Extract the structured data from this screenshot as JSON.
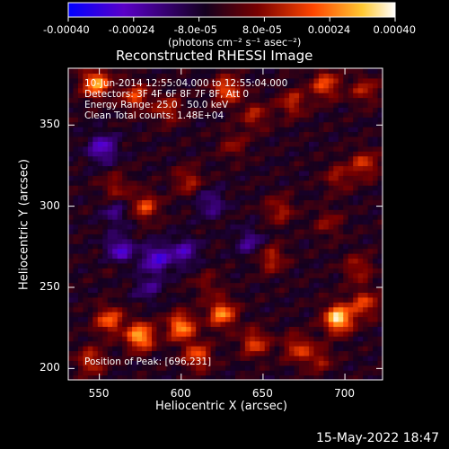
{
  "chart_data": {
    "type": "heatmap",
    "title": "Reconstructed RHESSI Image",
    "xlabel": "Heliocentric X (arcsec)",
    "ylabel": "Heliocentric Y (arcsec)",
    "xlim": [
      531,
      723
    ],
    "ylim": [
      193,
      385
    ],
    "x_ticks": [
      "550",
      "600",
      "650",
      "700"
    ],
    "x_tick_values": [
      550,
      600,
      650,
      700
    ],
    "y_ticks": [
      "200",
      "250",
      "300",
      "350"
    ],
    "y_tick_values": [
      200,
      250,
      300,
      350
    ],
    "colorbar": {
      "range": [
        -0.0004,
        0.0004
      ],
      "tick_labels": [
        "-0.00040",
        "-0.00024",
        "-8.0e-05",
        "8.0e-05",
        "0.00024",
        "0.00040"
      ],
      "tick_values": [
        -0.0004,
        -0.00024,
        -8e-05,
        8e-05,
        0.00024,
        0.0004
      ],
      "units_label": "(photons cm⁻² s⁻¹ asec⁻²)",
      "colormap": [
        "#0000ff",
        "#5a00c8",
        "#14001e",
        "#780000",
        "#ff4600",
        "#ffc832",
        "#ffffff"
      ]
    },
    "annotations": [
      "10-Jun-2014 12:55:04.000 to 12:55:04.000",
      "Detectors: 3F 4F 6F 8F 7F 8F, Att 0",
      "Energy Range: 25.0 - 50.0 keV",
      "Clean     Total counts: 1.48E+04"
    ],
    "peak_label": "Position of Peak: [696,231]",
    "peak_position": [
      696,
      231
    ],
    "hot_spots": [
      {
        "x": 548,
        "y": 376,
        "value": 0.00034
      },
      {
        "x": 572,
        "y": 368,
        "value": 0.00022
      },
      {
        "x": 592,
        "y": 360,
        "value": 0.00018
      },
      {
        "x": 628,
        "y": 372,
        "value": 0.00026
      },
      {
        "x": 645,
        "y": 356,
        "value": 0.00016
      },
      {
        "x": 668,
        "y": 364,
        "value": 0.00018
      },
      {
        "x": 688,
        "y": 375,
        "value": 0.00024
      },
      {
        "x": 712,
        "y": 372,
        "value": 0.00016
      },
      {
        "x": 632,
        "y": 338,
        "value": 0.00012
      },
      {
        "x": 712,
        "y": 326,
        "value": 0.0002
      },
      {
        "x": 696,
        "y": 318,
        "value": 0.00014
      },
      {
        "x": 604,
        "y": 316,
        "value": 0.00016
      },
      {
        "x": 578,
        "y": 300,
        "value": 0.00022
      },
      {
        "x": 560,
        "y": 312,
        "value": 0.00014
      },
      {
        "x": 660,
        "y": 298,
        "value": 0.00016
      },
      {
        "x": 690,
        "y": 290,
        "value": 0.00012
      },
      {
        "x": 560,
        "y": 268,
        "value": 0.00012
      },
      {
        "x": 655,
        "y": 268,
        "value": 0.00018
      },
      {
        "x": 708,
        "y": 262,
        "value": 0.00016
      },
      {
        "x": 616,
        "y": 252,
        "value": 0.0001
      },
      {
        "x": 556,
        "y": 230,
        "value": 0.00026
      },
      {
        "x": 575,
        "y": 220,
        "value": 0.00036
      },
      {
        "x": 600,
        "y": 226,
        "value": 0.00032
      },
      {
        "x": 625,
        "y": 234,
        "value": 0.0003
      },
      {
        "x": 545,
        "y": 205,
        "value": 0.0002
      },
      {
        "x": 610,
        "y": 208,
        "value": 0.00024
      },
      {
        "x": 645,
        "y": 216,
        "value": 0.00022
      },
      {
        "x": 671,
        "y": 213,
        "value": 0.0002
      },
      {
        "x": 696,
        "y": 231,
        "value": 0.00042
      },
      {
        "x": 712,
        "y": 240,
        "value": 0.00022
      },
      {
        "x": 684,
        "y": 206,
        "value": 0.00014
      }
    ],
    "cold_spots": [
      {
        "x": 552,
        "y": 336,
        "value": -0.00022
      },
      {
        "x": 560,
        "y": 296,
        "value": -0.00012
      },
      {
        "x": 562,
        "y": 272,
        "value": -0.0003
      },
      {
        "x": 585,
        "y": 268,
        "value": -0.00024
      },
      {
        "x": 602,
        "y": 272,
        "value": -0.00018
      },
      {
        "x": 618,
        "y": 302,
        "value": -0.00014
      },
      {
        "x": 642,
        "y": 278,
        "value": -0.00014
      },
      {
        "x": 580,
        "y": 250,
        "value": -0.00012
      }
    ]
  },
  "timestamp": "15-May-2022 18:47"
}
